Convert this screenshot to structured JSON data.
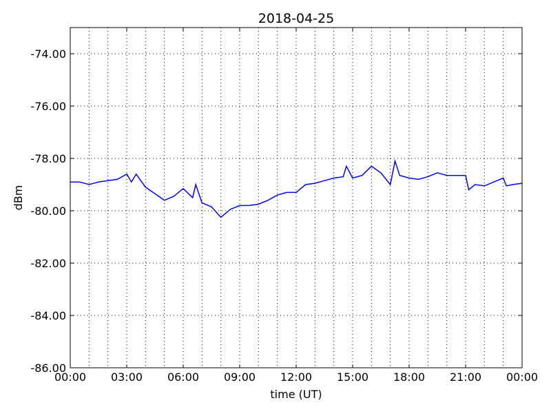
{
  "chart_data": {
    "type": "line",
    "title": "2018-04-25",
    "xlabel": "time (UT)",
    "ylabel": "dBm",
    "xlim": [
      "00:00",
      "24:00"
    ],
    "ylim": [
      -86,
      -73
    ],
    "grid": true,
    "x_ticks": [
      "00:00",
      "03:00",
      "06:00",
      "09:00",
      "12:00",
      "15:00",
      "18:00",
      "21:00",
      "00:00"
    ],
    "y_ticks": [
      "-74.00",
      "-76.00",
      "-78.00",
      "-80.00",
      "-82.00",
      "-84.00",
      "-86.00"
    ],
    "series": [
      {
        "color": "#0000ff",
        "x": [
          "00:00",
          "00:30",
          "01:00",
          "01:30",
          "02:00",
          "02:30",
          "03:00",
          "03:15",
          "03:30",
          "04:00",
          "04:30",
          "05:00",
          "05:30",
          "06:00",
          "06:30",
          "06:40",
          "07:00",
          "07:30",
          "08:00",
          "08:30",
          "09:00",
          "09:30",
          "10:00",
          "10:30",
          "11:00",
          "11:30",
          "12:00",
          "12:30",
          "13:00",
          "13:30",
          "14:00",
          "14:30",
          "14:40",
          "15:00",
          "15:30",
          "16:00",
          "16:30",
          "17:00",
          "17:15",
          "17:30",
          "18:00",
          "18:30",
          "19:00",
          "19:30",
          "20:00",
          "20:30",
          "21:00",
          "21:10",
          "21:30",
          "22:00",
          "22:30",
          "23:00",
          "23:10",
          "23:30",
          "24:00"
        ],
        "y": [
          -78.9,
          -78.9,
          -79.0,
          -78.9,
          -78.85,
          -78.8,
          -78.6,
          -78.9,
          -78.6,
          -79.1,
          -79.35,
          -79.6,
          -79.45,
          -79.15,
          -79.5,
          -79.0,
          -79.7,
          -79.85,
          -80.25,
          -79.95,
          -79.8,
          -79.8,
          -79.75,
          -79.6,
          -79.4,
          -79.3,
          -79.3,
          -79.0,
          -78.95,
          -78.85,
          -78.75,
          -78.7,
          -78.3,
          -78.75,
          -78.65,
          -78.3,
          -78.55,
          -79.0,
          -78.1,
          -78.65,
          -78.75,
          -78.8,
          -78.7,
          -78.55,
          -78.65,
          -78.65,
          -78.65,
          -79.2,
          -79.0,
          -79.05,
          -78.9,
          -78.75,
          -79.05,
          -79.0,
          -78.95
        ]
      }
    ]
  }
}
